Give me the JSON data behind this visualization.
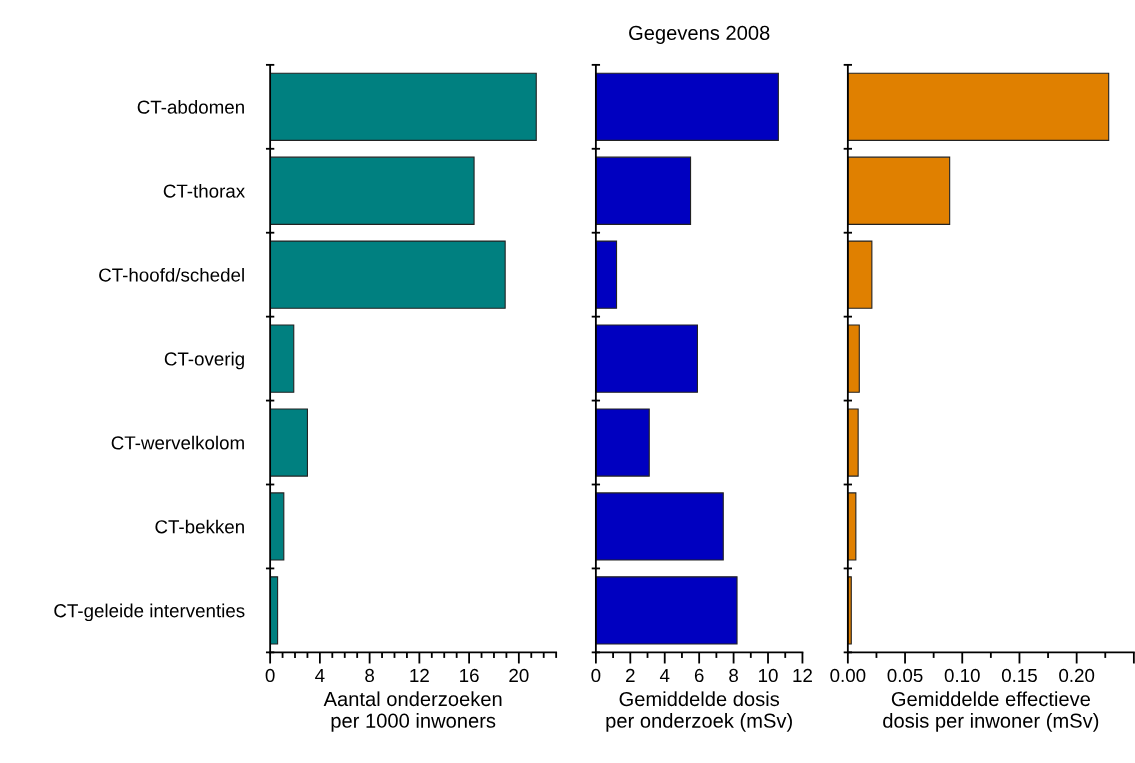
{
  "chart_data": [
    {
      "type": "bar",
      "orientation": "horizontal",
      "categories": [
        "CT-abdomen",
        "CT-thorax",
        "CT-hoofd/schedel",
        "CT-overig",
        "CT-wervelkolom",
        "CT-bekken",
        "CT-geleide interventies"
      ],
      "values": [
        21.4,
        16.4,
        18.9,
        1.9,
        3.0,
        1.1,
        0.6
      ],
      "color": "#008080",
      "xlim": [
        0,
        23
      ],
      "xticks": [
        0,
        4,
        8,
        12,
        16,
        20
      ],
      "xlabel": "Aantal onderzoeken\nper 1000 inwoners",
      "grid": false
    },
    {
      "type": "bar",
      "orientation": "horizontal",
      "title": "Gegevens 2008",
      "categories": [
        null,
        null,
        null,
        null,
        null,
        null,
        null
      ],
      "values": [
        10.6,
        5.5,
        1.2,
        5.9,
        3.1,
        7.4,
        8.2
      ],
      "color": "#0000c0",
      "xlim": [
        0,
        12
      ],
      "xticks": [
        0,
        2,
        4,
        6,
        8,
        10,
        12
      ],
      "xlabel": "Gemiddelde dosis\nper onderzoek (mSv)",
      "grid": false
    },
    {
      "type": "bar",
      "orientation": "horizontal",
      "categories": [
        null,
        null,
        null,
        null,
        null,
        null,
        null
      ],
      "values": [
        0.228,
        0.089,
        0.021,
        0.01,
        0.009,
        0.007,
        0.003
      ],
      "color": "#e08000",
      "xlim": [
        0,
        0.25
      ],
      "xticks": [
        {
          "value": 0,
          "label": "0.00"
        },
        {
          "value": 0.05,
          "label": "0.05"
        },
        {
          "value": 0.1,
          "label": "0.10"
        },
        {
          "value": 0.15,
          "label": "0.15"
        },
        {
          "value": 0.2,
          "label": "0.20"
        },
        {
          "value": 0.25,
          "label": null
        }
      ],
      "xlabel": "Gemiddelde effectieve\ndosis per inwoner (mSv)",
      "grid": false
    }
  ]
}
